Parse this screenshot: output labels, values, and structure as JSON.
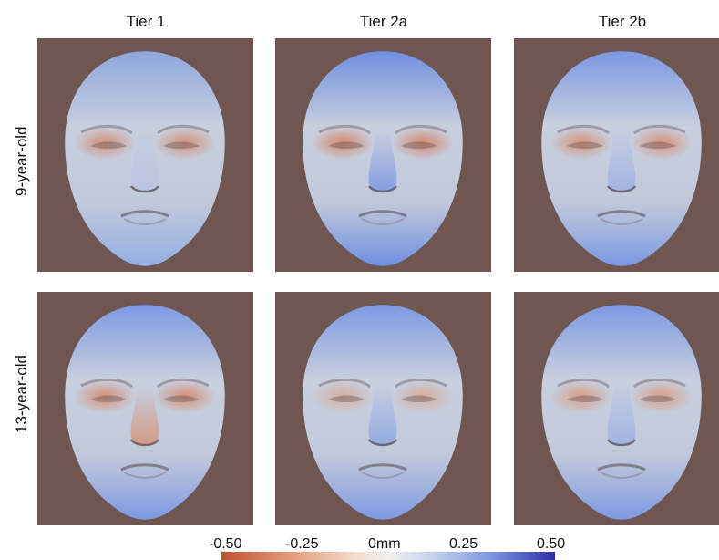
{
  "columns": [
    "Tier 1",
    "Tier 2a",
    "Tier 2b"
  ],
  "rows": [
    "9-year-old",
    "13-year-old"
  ],
  "colorbar": {
    "ticks": [
      "-0.50",
      "-0.25",
      "0mm",
      "0.25",
      "0.50"
    ],
    "colors": [
      "#c0502f",
      "#f2f0ee",
      "#2f2fa6"
    ]
  },
  "panel_background": "#705650",
  "panels": [
    {
      "row": "9-year-old",
      "column": "Tier 1",
      "image": "face-heatmap"
    },
    {
      "row": "9-year-old",
      "column": "Tier 2a",
      "image": "face-heatmap"
    },
    {
      "row": "9-year-old",
      "column": "Tier 2b",
      "image": "face-heatmap"
    },
    {
      "row": "13-year-old",
      "column": "Tier 1",
      "image": "face-heatmap"
    },
    {
      "row": "13-year-old",
      "column": "Tier 2a",
      "image": "face-heatmap"
    },
    {
      "row": "13-year-old",
      "column": "Tier 2b",
      "image": "face-heatmap"
    }
  ]
}
